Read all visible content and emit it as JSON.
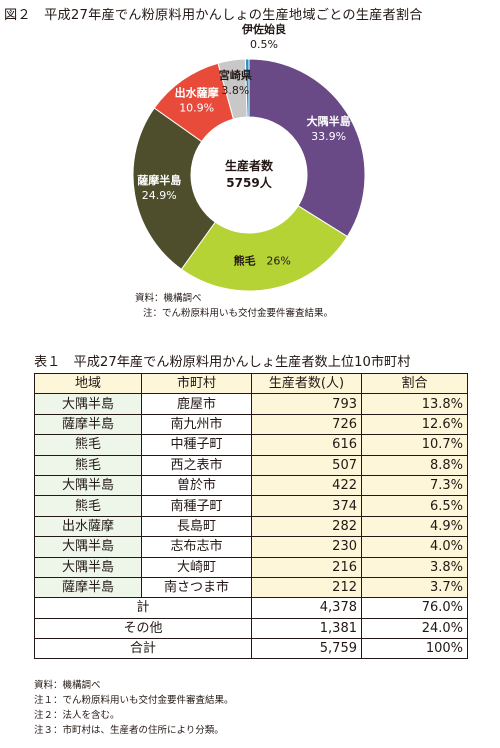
{
  "figure_title": "図２　平成27年産でん粉原料用かんしょの生産地域ごとの生産者割合",
  "chart_data": {
    "type": "pie",
    "title": "図２　平成27年産でん粉原料用かんしょの生産地域ごとの生産者割合",
    "center_label": "生産者数",
    "center_value": "5759人",
    "slices": [
      {
        "name": "大隅半島",
        "label": "33.9%",
        "value": 33.9,
        "color": "#6a4a86"
      },
      {
        "name": "熊毛",
        "label": "26%",
        "value": 26.0,
        "color": "#b5d334"
      },
      {
        "name": "薩摩半島",
        "label": "24.9%",
        "value": 24.9,
        "color": "#4e4e2c"
      },
      {
        "name": "出水薩摩",
        "label": "10.9%",
        "value": 10.9,
        "color": "#e84b3a"
      },
      {
        "name": "宮崎県",
        "label": "3.8%",
        "value": 3.8,
        "color": "#c8c8c8"
      },
      {
        "name": "伊佐始良",
        "label": "0.5%",
        "value": 0.5,
        "color": "#2a8ec8"
      }
    ]
  },
  "figure_source": "資料：機構調べ",
  "figure_note": "注：でん粉原料用いも交付金要件審査結果。",
  "table": {
    "title": "表１　平成27年産でん粉原料用かんしょ生産者数上位10市町村",
    "headers": [
      "地域",
      "市町村",
      "生産者数(人)",
      "割合"
    ],
    "rows": [
      [
        "大隅半島",
        "鹿屋市",
        "793",
        "13.8%"
      ],
      [
        "薩摩半島",
        "南九州市",
        "726",
        "12.6%"
      ],
      [
        "熊毛",
        "中種子町",
        "616",
        "10.7%"
      ],
      [
        "熊毛",
        "西之表市",
        "507",
        "8.8%"
      ],
      [
        "大隅半島",
        "曽於市",
        "422",
        "7.3%"
      ],
      [
        "熊毛",
        "南種子町",
        "374",
        "6.5%"
      ],
      [
        "出水薩摩",
        "長島町",
        "282",
        "4.9%"
      ],
      [
        "大隅半島",
        "志布志市",
        "230",
        "4.0%"
      ],
      [
        "大隅半島",
        "大崎町",
        "216",
        "3.8%"
      ],
      [
        "薩摩半島",
        "南さつま市",
        "212",
        "3.7%"
      ]
    ],
    "totals": [
      [
        "計",
        "4,378",
        "76.0%"
      ],
      [
        "その他",
        "1,381",
        "24.0%"
      ],
      [
        "合計",
        "5,759",
        "100%"
      ]
    ]
  },
  "table_notes": [
    "資料：機構調べ",
    "注１：でん粉原料用いも交付金要件審査結果。",
    "注２：法人を含む。",
    "注３：市町村は、生産者の住所により分類。"
  ]
}
